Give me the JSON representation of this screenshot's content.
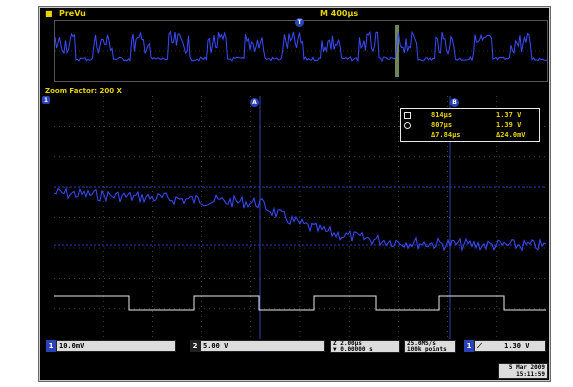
{
  "window": {
    "title": "PreVu",
    "timebase": "M 400µs"
  },
  "zoom": {
    "label": "Zoom Factor: 200 X"
  },
  "cursors": {
    "rows": [
      {
        "a": "814µs",
        "b": "1.37 V"
      },
      {
        "a": "807µs",
        "b": "1.39 V"
      },
      {
        "a": "Δ7.84µs",
        "b": "Δ24.0mV"
      }
    ]
  },
  "bottom": {
    "ch1_scale": "10.0mV",
    "ch2_scale": "5.00 V",
    "ch1_badge": "1",
    "ch2_badge": "2",
    "zoom_scale": "Z 2.00µs",
    "zoom_pos": "▼ 0.00000 s",
    "sample_rate": "25.0MS/s",
    "points": "100k points",
    "trig_channel": "1",
    "trig_level": "1.30 V"
  },
  "datetime": {
    "date": "5 Mar  2009",
    "time": "15:11:59"
  },
  "colors": {
    "trace": "#3a4cff",
    "accent_yellow": "#e8d300",
    "grid": "#6a6a6a",
    "ch2_trace": "#e8e8e8"
  }
}
